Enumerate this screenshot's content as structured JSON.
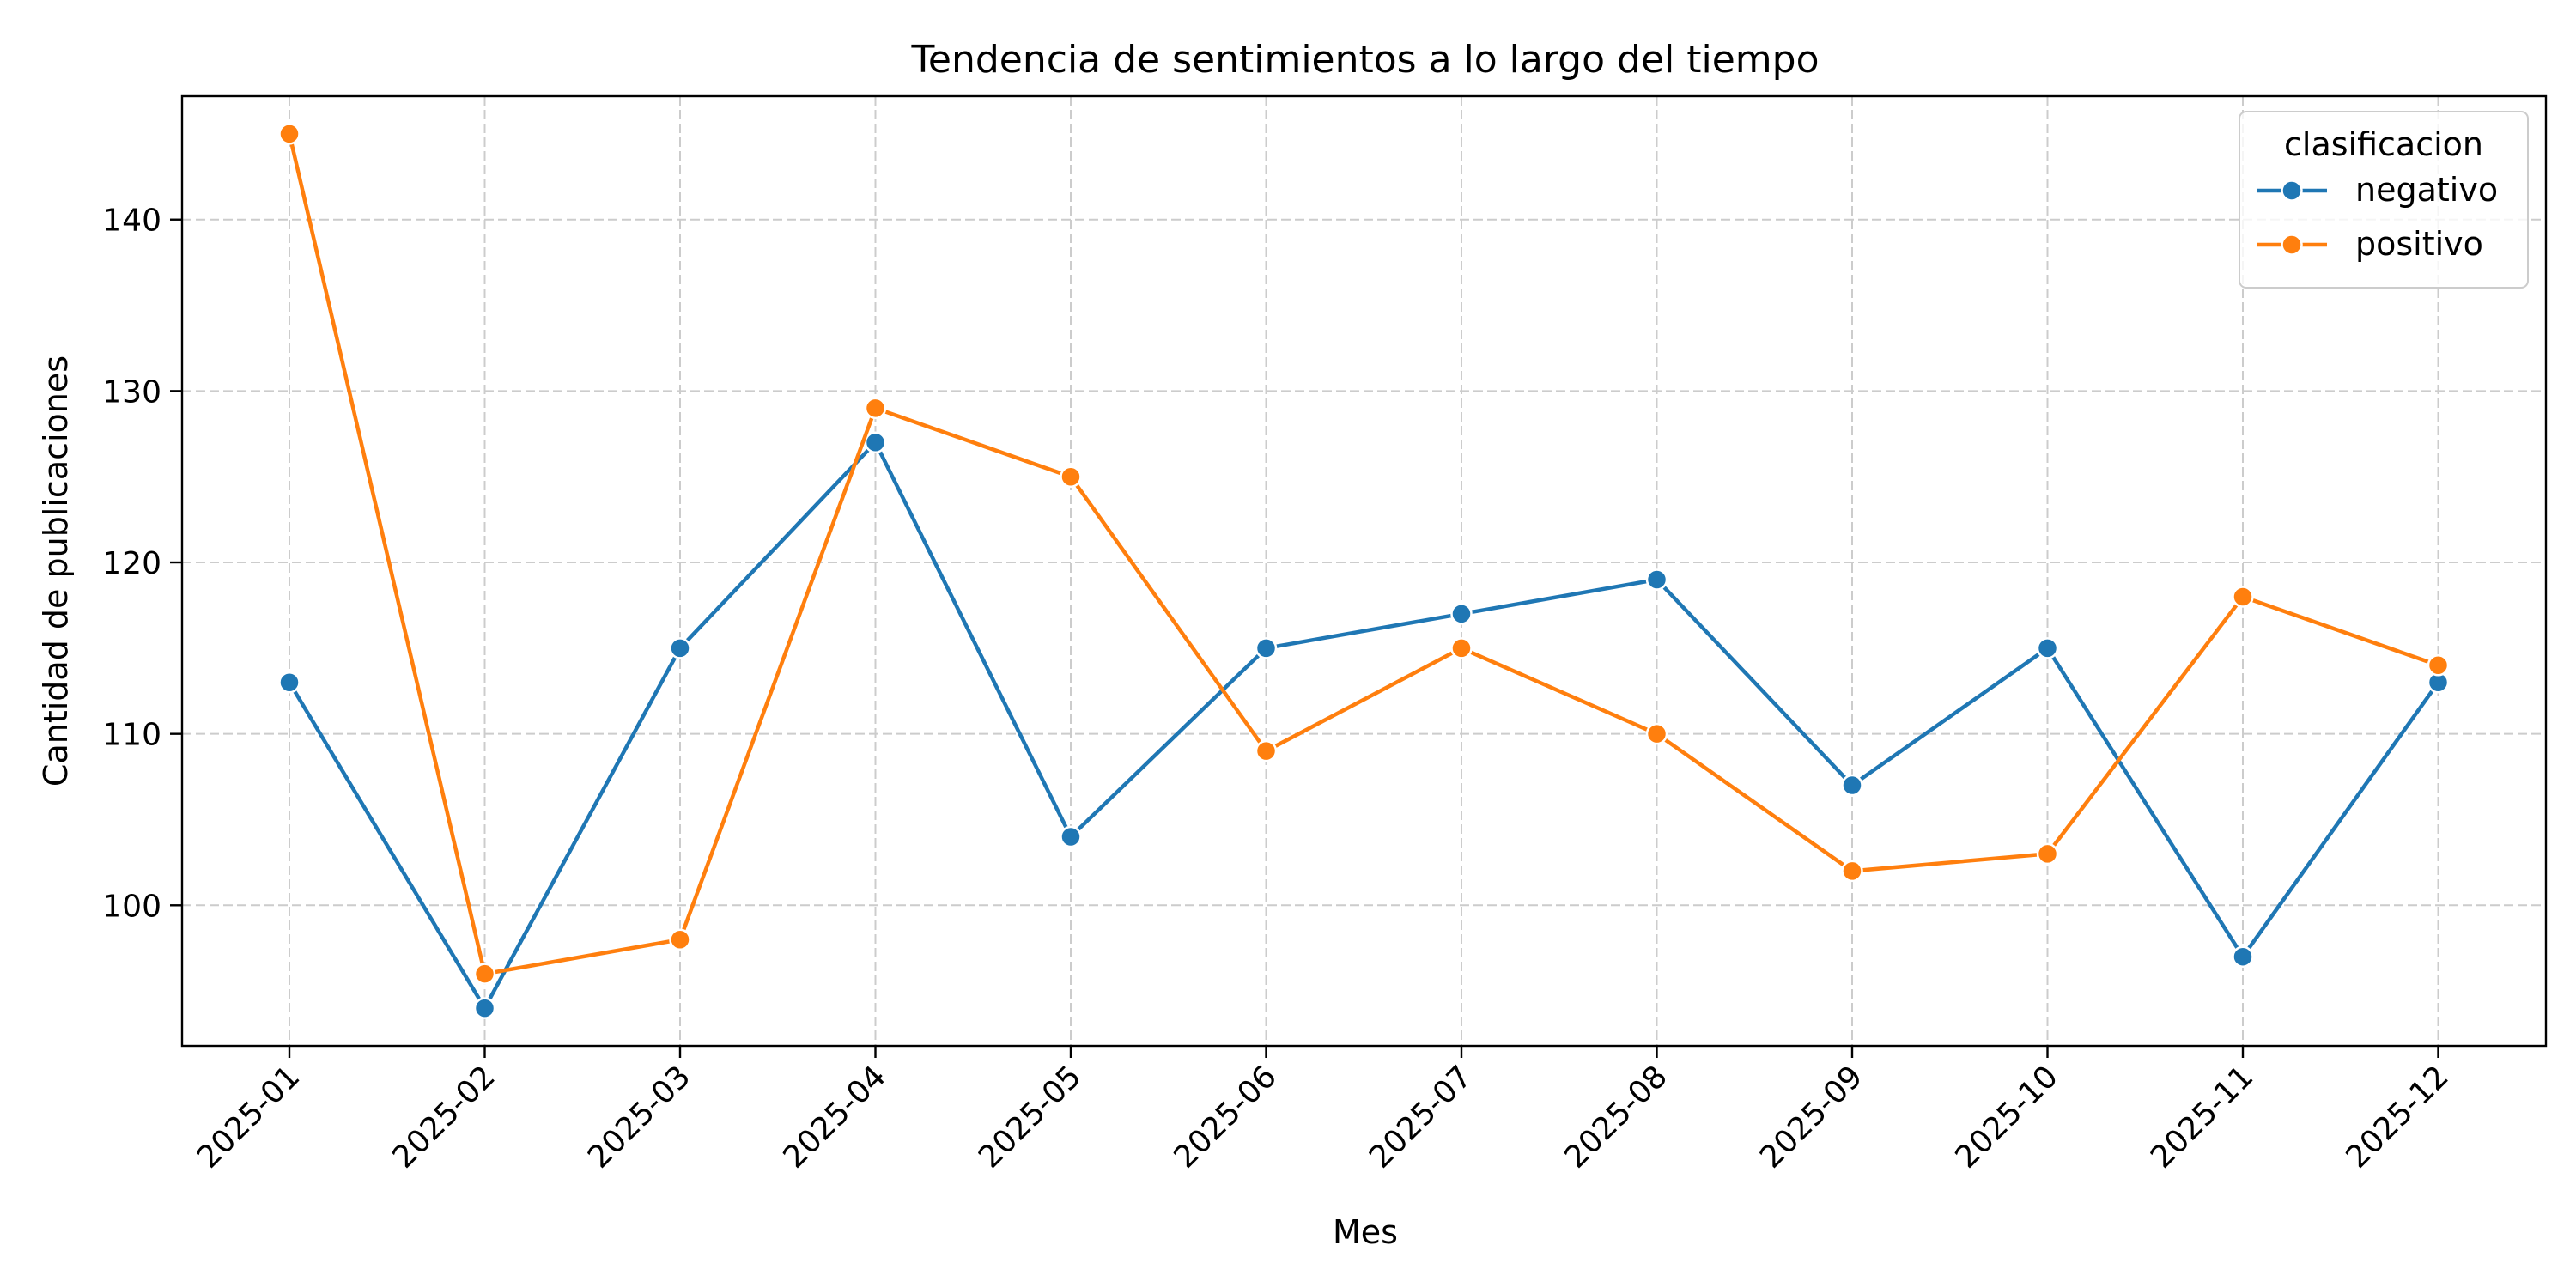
{
  "chart_data": {
    "type": "line",
    "title": "Tendencia de sentimientos a lo largo del tiempo",
    "xlabel": "Mes",
    "ylabel": "Cantidad de publicaciones",
    "categories": [
      "2025-01",
      "2025-02",
      "2025-03",
      "2025-04",
      "2025-05",
      "2025-06",
      "2025-07",
      "2025-08",
      "2025-09",
      "2025-10",
      "2025-11",
      "2025-12"
    ],
    "ylim": [
      91.8,
      147.2
    ],
    "yticks": [
      100,
      110,
      120,
      130,
      140
    ],
    "grid": true,
    "legend": {
      "title": "clasificacion",
      "placement": "top-right"
    },
    "series": [
      {
        "name": "negativo",
        "color": "#1f77b4",
        "values": [
          113,
          94,
          115,
          127,
          104,
          115,
          117,
          119,
          107,
          115,
          97,
          113
        ]
      },
      {
        "name": "positivo",
        "color": "#ff7f0e",
        "values": [
          145,
          96,
          98,
          129,
          125,
          109,
          115,
          110,
          102,
          103,
          118,
          114
        ]
      }
    ]
  }
}
